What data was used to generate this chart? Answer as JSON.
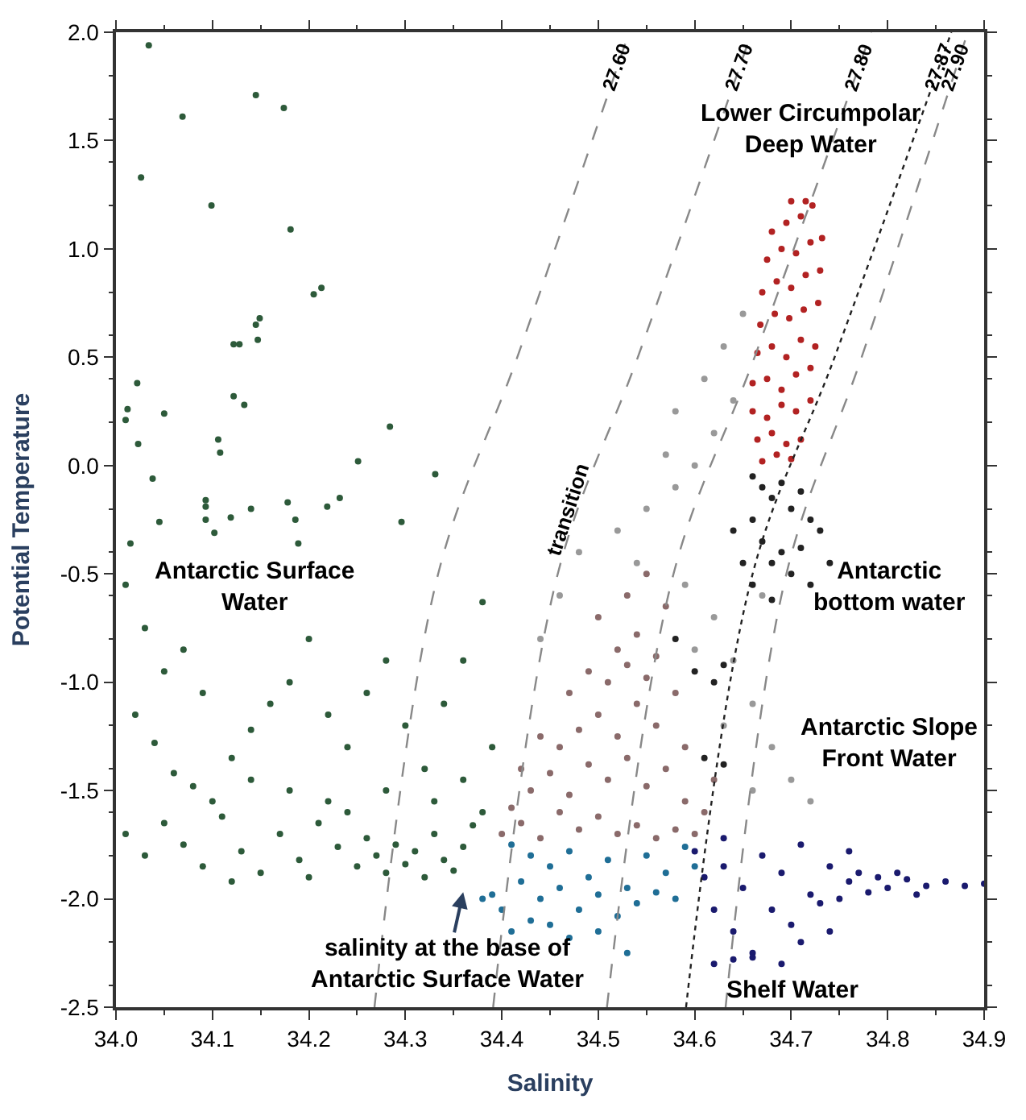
{
  "chart_data": {
    "type": "scatter",
    "xlabel": "Salinity",
    "ylabel": "Potential Temperature",
    "xlim": [
      34.0,
      34.9
    ],
    "ylim": [
      -2.5,
      2.0
    ],
    "xticks": [
      {
        "value": 34.0,
        "label": "34.0"
      },
      {
        "value": 34.1,
        "label": "34.1"
      },
      {
        "value": 34.2,
        "label": "34.2"
      },
      {
        "value": 34.3,
        "label": "34.3"
      },
      {
        "value": 34.4,
        "label": "34.4"
      },
      {
        "value": 34.5,
        "label": "34.5"
      },
      {
        "value": 34.6,
        "label": "34.6"
      },
      {
        "value": 34.7,
        "label": "34.7"
      },
      {
        "value": 34.8,
        "label": "34.8"
      },
      {
        "value": 34.9,
        "label": "34.9"
      }
    ],
    "yticks": [
      {
        "value": 2.0,
        "label": "2.0"
      },
      {
        "value": 1.5,
        "label": "1.5"
      },
      {
        "value": 1.0,
        "label": "1.0"
      },
      {
        "value": 0.5,
        "label": "0.5"
      },
      {
        "value": 0.0,
        "label": "0.0"
      },
      {
        "value": -0.5,
        "label": "-0.5"
      },
      {
        "value": -1.0,
        "label": "-1.0"
      },
      {
        "value": -1.5,
        "label": "-1.5"
      },
      {
        "value": -2.0,
        "label": "-2.0"
      },
      {
        "value": -2.5,
        "label": "-2.5"
      }
    ],
    "legend": false,
    "marker": "circle",
    "series": [
      {
        "color": "#2d5a3a",
        "x": [
          34.034,
          34.069,
          34.026,
          34.145,
          34.174,
          34.099,
          34.181,
          34.205,
          34.213,
          34.149,
          34.145,
          34.147,
          34.122,
          34.128,
          34.022,
          34.012,
          34.01,
          34.05,
          34.122,
          34.133,
          34.023,
          34.106,
          34.108,
          34.284,
          34.251,
          34.331,
          34.038,
          34.093,
          34.093,
          34.093,
          34.119,
          34.102,
          34.14,
          34.178,
          34.186,
          34.219,
          34.232,
          34.296,
          34.045,
          34.015,
          34.189,
          34.01,
          34.03,
          34.05,
          34.07,
          34.09,
          34.02,
          34.04,
          34.06,
          34.08,
          34.1,
          34.12,
          34.14,
          34.16,
          34.18,
          34.2,
          34.22,
          34.24,
          34.26,
          34.28,
          34.3,
          34.32,
          34.34,
          34.36,
          34.38,
          34.39,
          34.01,
          34.03,
          34.05,
          34.07,
          34.09,
          34.11,
          34.13,
          34.15,
          34.17,
          34.19,
          34.21,
          34.23,
          34.25,
          34.26,
          34.27,
          34.28,
          34.29,
          34.3,
          34.31,
          34.32,
          34.33,
          34.34,
          34.35,
          34.36,
          34.37,
          34.38,
          34.24,
          34.18,
          34.12,
          34.2,
          34.14,
          34.22,
          34.28,
          34.33,
          34.36
        ],
        "values": [
          1.94,
          1.61,
          1.33,
          1.71,
          1.65,
          1.2,
          1.09,
          0.79,
          0.82,
          0.68,
          0.65,
          0.58,
          0.56,
          0.56,
          0.38,
          0.26,
          0.21,
          0.24,
          0.32,
          0.28,
          0.1,
          0.12,
          0.06,
          0.18,
          0.02,
          -0.04,
          -0.06,
          -0.16,
          -0.19,
          -0.25,
          -0.24,
          -0.31,
          -0.2,
          -0.17,
          -0.25,
          -0.19,
          -0.15,
          -0.26,
          -0.26,
          -0.36,
          -0.36,
          -0.55,
          -0.75,
          -0.95,
          -0.85,
          -1.05,
          -1.15,
          -1.28,
          -1.42,
          -1.48,
          -1.55,
          -1.35,
          -1.22,
          -1.1,
          -1.0,
          -0.8,
          -1.15,
          -1.3,
          -1.05,
          -0.9,
          -1.2,
          -1.4,
          -1.1,
          -0.9,
          -0.63,
          -1.3,
          -1.7,
          -1.8,
          -1.65,
          -1.75,
          -1.85,
          -1.62,
          -1.78,
          -1.88,
          -1.7,
          -1.82,
          -1.65,
          -1.76,
          -1.85,
          -1.72,
          -1.8,
          -1.88,
          -1.75,
          -1.84,
          -1.78,
          -1.9,
          -1.7,
          -1.82,
          -1.87,
          -1.76,
          -1.66,
          -1.6,
          -1.6,
          -1.5,
          -1.92,
          -1.9,
          -1.45,
          -1.55,
          -1.5,
          -1.55,
          -1.45
        ]
      },
      {
        "color": "#999999",
        "x": [
          34.48,
          34.52,
          34.55,
          34.58,
          34.6,
          34.62,
          34.64,
          34.63,
          34.65,
          34.61,
          34.57,
          34.54,
          34.59,
          34.62,
          34.64,
          34.66,
          34.68,
          34.7,
          34.72,
          34.66,
          34.63,
          34.6,
          34.46,
          34.44,
          34.58,
          34.67
        ],
        "values": [
          -0.4,
          -0.3,
          -0.2,
          -0.1,
          0.0,
          0.15,
          0.3,
          0.55,
          0.7,
          0.4,
          0.05,
          -0.45,
          -0.55,
          -0.7,
          -0.9,
          -1.1,
          -1.3,
          -1.45,
          -1.55,
          -1.5,
          -1.2,
          -0.85,
          -0.6,
          -0.8,
          0.25,
          -0.6
        ]
      },
      {
        "color": "#8a6a6a",
        "x": [
          34.4,
          34.42,
          34.44,
          34.46,
          34.48,
          34.5,
          34.52,
          34.54,
          34.56,
          34.58,
          34.6,
          34.43,
          34.45,
          34.47,
          34.49,
          34.51,
          34.53,
          34.55,
          34.57,
          34.59,
          34.46,
          34.48,
          34.5,
          34.52,
          34.54,
          34.56,
          34.51,
          34.53,
          34.55,
          34.52,
          34.54,
          34.5,
          34.56,
          34.58,
          34.49,
          34.47,
          34.44,
          34.42,
          34.41,
          34.61,
          34.57,
          34.53,
          34.55,
          34.59,
          34.62
        ],
        "values": [
          -1.7,
          -1.65,
          -1.72,
          -1.6,
          -1.68,
          -1.62,
          -1.7,
          -1.66,
          -1.72,
          -1.68,
          -1.7,
          -1.5,
          -1.42,
          -1.52,
          -1.38,
          -1.45,
          -1.35,
          -1.48,
          -1.4,
          -1.55,
          -1.3,
          -1.22,
          -1.15,
          -1.25,
          -1.1,
          -1.2,
          -1.0,
          -0.92,
          -0.98,
          -0.85,
          -0.78,
          -0.7,
          -0.88,
          -1.05,
          -0.95,
          -1.05,
          -1.25,
          -1.4,
          -1.58,
          -1.6,
          -0.65,
          -0.6,
          -0.5,
          -1.3,
          -1.45
        ]
      },
      {
        "color": "#222222",
        "x": [
          34.66,
          34.67,
          34.68,
          34.69,
          34.7,
          34.71,
          34.72,
          34.73,
          34.66,
          34.67,
          34.68,
          34.69,
          34.7,
          34.71,
          34.72,
          34.74,
          34.65,
          34.64,
          34.66,
          34.68,
          34.6,
          34.62,
          34.63,
          34.58,
          34.61,
          34.63
        ],
        "values": [
          -0.05,
          -0.1,
          -0.15,
          -0.08,
          -0.2,
          -0.12,
          -0.25,
          -0.3,
          -0.25,
          -0.35,
          -0.45,
          -0.4,
          -0.5,
          -0.38,
          -0.55,
          -0.45,
          -0.45,
          -0.3,
          -0.55,
          -0.62,
          -0.95,
          -1.0,
          -0.92,
          -0.8,
          -1.35,
          -1.38
        ]
      },
      {
        "color": "#b22222",
        "x": [
          34.67,
          34.685,
          34.7,
          34.665,
          34.68,
          34.695,
          34.71,
          34.66,
          34.675,
          34.69,
          34.705,
          34.72,
          34.66,
          34.675,
          34.69,
          34.705,
          34.72,
          34.665,
          34.68,
          34.695,
          34.71,
          34.725,
          34.668,
          34.683,
          34.698,
          34.713,
          34.728,
          34.67,
          34.685,
          34.7,
          34.715,
          34.73,
          34.675,
          34.69,
          34.705,
          34.72,
          34.732,
          34.68,
          34.695,
          34.71,
          34.722,
          34.7,
          34.715
        ],
        "values": [
          0.02,
          0.05,
          0.03,
          0.12,
          0.15,
          0.1,
          0.12,
          0.25,
          0.22,
          0.28,
          0.25,
          0.3,
          0.38,
          0.4,
          0.35,
          0.42,
          0.45,
          0.52,
          0.55,
          0.5,
          0.58,
          0.55,
          0.65,
          0.7,
          0.68,
          0.72,
          0.75,
          0.8,
          0.85,
          0.82,
          0.88,
          0.9,
          0.95,
          1.0,
          0.98,
          1.03,
          1.05,
          1.08,
          1.12,
          1.15,
          1.2,
          1.22,
          1.22
        ]
      },
      {
        "color": "#1f6e96",
        "x": [
          34.41,
          34.43,
          34.45,
          34.47,
          34.49,
          34.51,
          34.53,
          34.55,
          34.57,
          34.59,
          34.42,
          34.44,
          34.46,
          34.48,
          34.5,
          34.52,
          34.54,
          34.56,
          34.58,
          34.6,
          34.45,
          34.47,
          34.43,
          34.4,
          34.5,
          34.53,
          34.38,
          34.39,
          34.41
        ],
        "values": [
          -1.75,
          -1.8,
          -1.85,
          -1.78,
          -1.9,
          -1.82,
          -1.95,
          -1.8,
          -1.88,
          -1.76,
          -1.92,
          -2.0,
          -1.95,
          -2.05,
          -1.98,
          -2.08,
          -2.02,
          -1.97,
          -2.0,
          -1.85,
          -2.12,
          -2.18,
          -2.1,
          -2.05,
          -2.15,
          -2.25,
          -2.0,
          -1.98,
          -2.15
        ]
      },
      {
        "color": "#1a1a6e",
        "x": [
          34.6,
          34.61,
          34.62,
          34.63,
          34.64,
          34.65,
          34.66,
          34.67,
          34.68,
          34.69,
          34.7,
          34.71,
          34.72,
          34.73,
          34.74,
          34.75,
          34.76,
          34.77,
          34.78,
          34.79,
          34.8,
          34.82,
          34.84,
          34.86,
          34.88,
          34.9,
          34.62,
          34.64,
          34.66,
          34.63,
          34.69,
          34.71,
          34.74,
          34.76,
          34.81,
          34.83
        ],
        "values": [
          -1.78,
          -1.9,
          -2.05,
          -1.85,
          -2.15,
          -1.95,
          -2.25,
          -1.8,
          -2.05,
          -1.88,
          -2.12,
          -1.75,
          -1.98,
          -2.02,
          -1.85,
          -2.0,
          -1.92,
          -1.88,
          -1.97,
          -1.9,
          -1.95,
          -1.91,
          -1.94,
          -1.92,
          -1.94,
          -1.93,
          -2.3,
          -2.28,
          -2.27,
          -1.72,
          -2.3,
          -2.2,
          -2.15,
          -1.78,
          -1.88,
          -1.98
        ]
      },
      {
        "type": "line",
        "marker": "none",
        "name": "27.60",
        "color": "#888888",
        "line_style": "dashed",
        "x": [
          34.268,
          34.334,
          34.416,
          34.532
        ],
        "values": [
          -2.5,
          -0.5,
          0.5,
          2.0
        ]
      },
      {
        "type": "line",
        "marker": "none",
        "name": "27.70",
        "color": "#888888",
        "line_style": "dashed",
        "x": [
          34.391,
          34.458,
          34.541,
          34.659
        ],
        "values": [
          -2.5,
          -0.5,
          0.5,
          2.0
        ]
      },
      {
        "type": "line",
        "marker": "none",
        "name": "27.80",
        "color": "#888888",
        "line_style": "dashed",
        "x": [
          34.509,
          34.578,
          34.662,
          34.783
        ],
        "values": [
          -2.5,
          -0.5,
          0.5,
          2.0
        ]
      },
      {
        "type": "line",
        "marker": "none",
        "name": "27.87",
        "color": "#222222",
        "line_style": "dotted",
        "x": [
          34.591,
          34.66,
          34.745,
          34.866
        ],
        "values": [
          -2.5,
          -0.5,
          0.5,
          2.0
        ]
      },
      {
        "type": "line",
        "marker": "none",
        "name": "27.90",
        "color": "#888888",
        "line_style": "dashed",
        "x": [
          34.632,
          34.695,
          34.773,
          34.883
        ],
        "values": [
          -2.5,
          -0.5,
          0.5,
          2.0
        ]
      }
    ],
    "annotations": [
      "Lower Circumpolar\nDeep Water",
      "Antarctic\nbottom water",
      "Antarctic Slope\nFront Water",
      "Shelf Water",
      "Antarctic Surface\nWater",
      "transition",
      "salinity at the base of\nAntarctic Surface Water"
    ]
  }
}
